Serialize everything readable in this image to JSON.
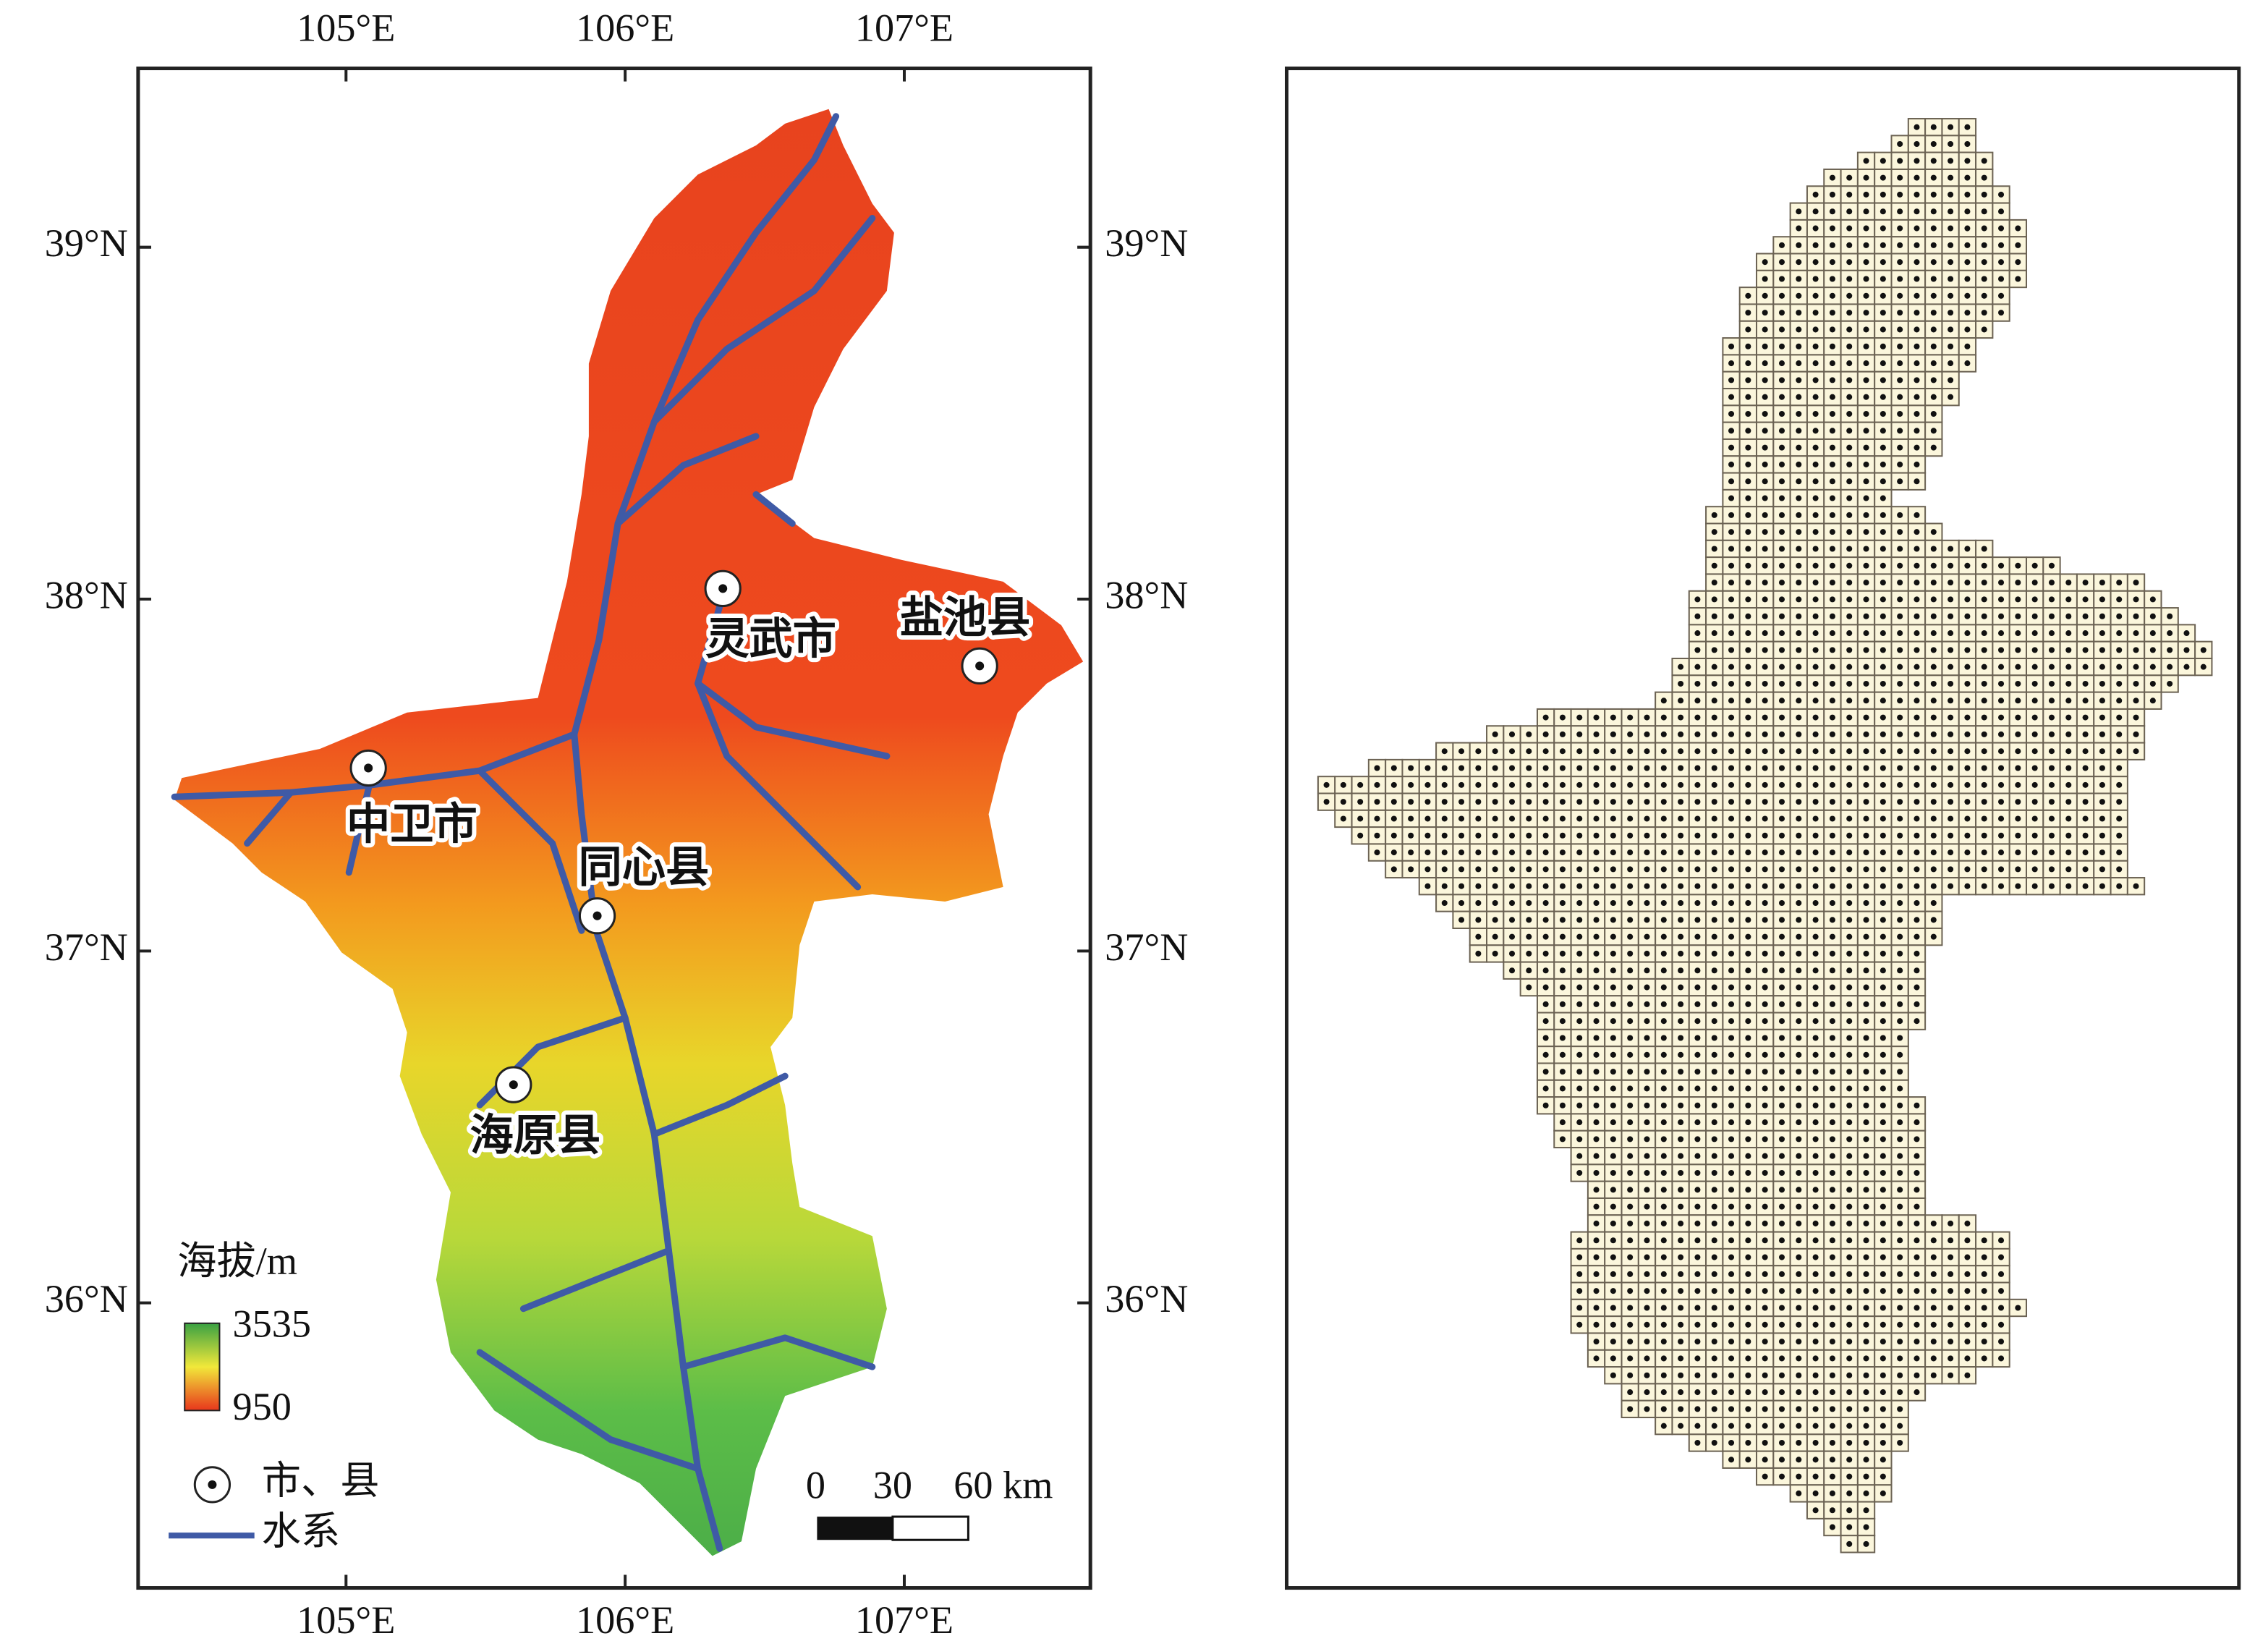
{
  "map": {
    "lon_ticks": [
      {
        "value": 105,
        "label": "105°E"
      },
      {
        "value": 106,
        "label": "106°E"
      },
      {
        "value": 107,
        "label": "107°E"
      }
    ],
    "lat_ticks": [
      {
        "value": 39,
        "label": "39°N"
      },
      {
        "value": 38,
        "label": "38°N"
      },
      {
        "value": 37,
        "label": "37°N"
      },
      {
        "value": 36,
        "label": "36°N"
      }
    ],
    "cities": [
      {
        "label": "灵武市",
        "lon": 106.35,
        "lat": 38.03
      },
      {
        "label": "盐池县",
        "lon": 107.27,
        "lat": 37.81
      },
      {
        "label": "中卫市",
        "lon": 105.08,
        "lat": 37.52
      },
      {
        "label": "同心县",
        "lon": 105.9,
        "lat": 37.1
      },
      {
        "label": "海原县",
        "lon": 105.6,
        "lat": 36.62
      }
    ],
    "legend": {
      "title": "海拔/m",
      "max": "3535",
      "min": "950",
      "city": "市、县",
      "river": "水系"
    },
    "scale_labels": [
      "0",
      "30",
      "60 km"
    ]
  }
}
